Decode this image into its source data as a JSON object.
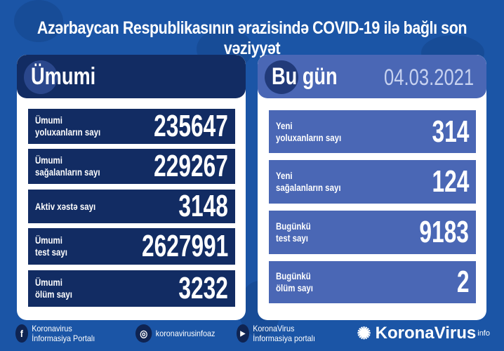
{
  "title": "Azərbaycan Respublikasının ərazisində COVID-19 ilə bağlı son vəziyyət",
  "left": {
    "heading": "Ümumi",
    "rows": [
      {
        "label": "Ümumi\nyoluxanların sayı",
        "value": "235647"
      },
      {
        "label": "Ümumi\nsağalanların sayı",
        "value": "229267"
      },
      {
        "label": "Aktiv xəstə sayı",
        "value": "3148"
      },
      {
        "label": "Ümumi\ntest sayı",
        "value": "2627991"
      },
      {
        "label": "Ümumi\nölüm sayı",
        "value": "3232"
      }
    ]
  },
  "right": {
    "heading": "Bu gün",
    "date": "04.03.2021",
    "rows": [
      {
        "label": "Yeni\nyoluxanların sayı",
        "value": "314"
      },
      {
        "label": "Yeni\nsağalanların sayı",
        "value": "124"
      },
      {
        "label": "Bugünkü\ntest sayı",
        "value": "9183"
      },
      {
        "label": "Bugünkü\nölüm sayı",
        "value": "2"
      }
    ]
  },
  "footer": {
    "facebook": "Koronavirus İnformasiya Portalı",
    "instagram": "koronavirusinfoaz",
    "youtube": "KoronaVirus İnformasiya portalı",
    "brand": "KoronaVirus",
    "brand_sup": "info"
  },
  "colors": {
    "background": "#1b55a6",
    "left_panel": "#122c63",
    "right_panel": "#4a67b5"
  }
}
